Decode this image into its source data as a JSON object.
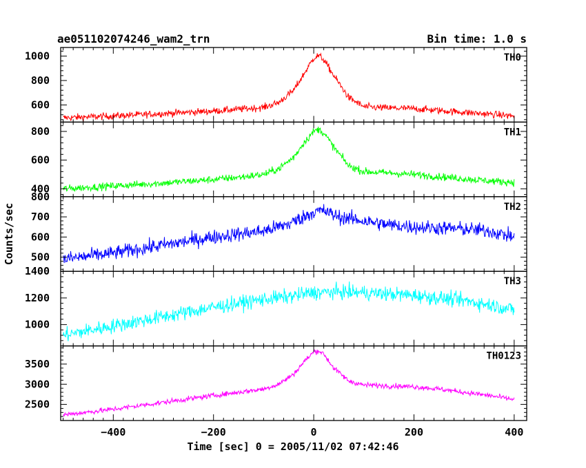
{
  "chart_data": {
    "type": "line",
    "title": "ae051102074246_wam2_trn",
    "subtitle": "Bin time: 1.0 s",
    "xlabel": "Time [sec] 0 = 2005/11/02 07:42:46",
    "ylabel": "Counts/sec",
    "xlim": [
      -505,
      425
    ],
    "x_ticks": [
      -400,
      -200,
      0,
      200,
      400
    ],
    "x_tick_labels": [
      "−400",
      "−200",
      "0",
      "200",
      "400"
    ],
    "grid": false,
    "panels": [
      {
        "name": "TH0",
        "color": "#ff0000",
        "ylim": [
          460,
          1070
        ],
        "y_ticks": [
          600,
          800,
          1000
        ],
        "series": {
          "x": [
            -500,
            -400,
            -300,
            -200,
            -150,
            -100,
            -70,
            -40,
            -20,
            0,
            10,
            20,
            40,
            70,
            100,
            150,
            200,
            250,
            300,
            350,
            400
          ],
          "y": [
            495,
            510,
            530,
            550,
            565,
            580,
            620,
            720,
            850,
            985,
            1005,
            970,
            840,
            660,
            585,
            575,
            570,
            555,
            540,
            525,
            510
          ]
        },
        "noise": 20
      },
      {
        "name": "TH1",
        "color": "#00ff00",
        "ylim": [
          345,
          865
        ],
        "y_ticks": [
          400,
          600,
          800
        ],
        "series": {
          "x": [
            -500,
            -400,
            -300,
            -200,
            -150,
            -100,
            -70,
            -40,
            -20,
            0,
            10,
            20,
            40,
            70,
            100,
            150,
            200,
            250,
            300,
            350,
            400
          ],
          "y": [
            400,
            420,
            440,
            465,
            480,
            500,
            540,
            620,
            720,
            800,
            815,
            790,
            690,
            560,
            520,
            510,
            500,
            485,
            470,
            455,
            445
          ]
        },
        "noise": 18
      },
      {
        "name": "TH2",
        "color": "#0000ff",
        "ylim": [
          430,
          800
        ],
        "y_ticks": [
          500,
          600,
          700,
          800
        ],
        "series": {
          "x": [
            -500,
            -400,
            -300,
            -200,
            -150,
            -100,
            -50,
            -20,
            0,
            20,
            50,
            100,
            150,
            200,
            250,
            300,
            350,
            400
          ],
          "y": [
            490,
            520,
            560,
            600,
            615,
            630,
            665,
            700,
            725,
            730,
            700,
            680,
            660,
            650,
            645,
            640,
            630,
            600
          ]
        },
        "noise": 25
      },
      {
        "name": "TH3",
        "color": "#00ffff",
        "ylim": [
          840,
          1400
        ],
        "y_ticks": [
          1000,
          1200,
          1400
        ],
        "series": {
          "x": [
            -500,
            -400,
            -300,
            -200,
            -100,
            -50,
            0,
            50,
            100,
            150,
            200,
            250,
            300,
            350,
            400
          ],
          "y": [
            920,
            990,
            1060,
            1130,
            1190,
            1210,
            1240,
            1245,
            1240,
            1230,
            1220,
            1200,
            1180,
            1150,
            1110
          ]
        },
        "noise": 38
      },
      {
        "name": "TH0123",
        "color": "#ff00ff",
        "ylim": [
          2100,
          3950
        ],
        "y_ticks": [
          2500,
          3000,
          3500
        ],
        "series": {
          "x": [
            -500,
            -400,
            -300,
            -200,
            -150,
            -100,
            -70,
            -40,
            -20,
            0,
            10,
            20,
            40,
            70,
            100,
            150,
            200,
            250,
            300,
            350,
            400
          ],
          "y": [
            2240,
            2380,
            2550,
            2720,
            2800,
            2880,
            3000,
            3250,
            3550,
            3800,
            3830,
            3750,
            3400,
            3080,
            2980,
            2960,
            2940,
            2880,
            2800,
            2720,
            2620
          ]
        },
        "noise": 45
      }
    ]
  }
}
